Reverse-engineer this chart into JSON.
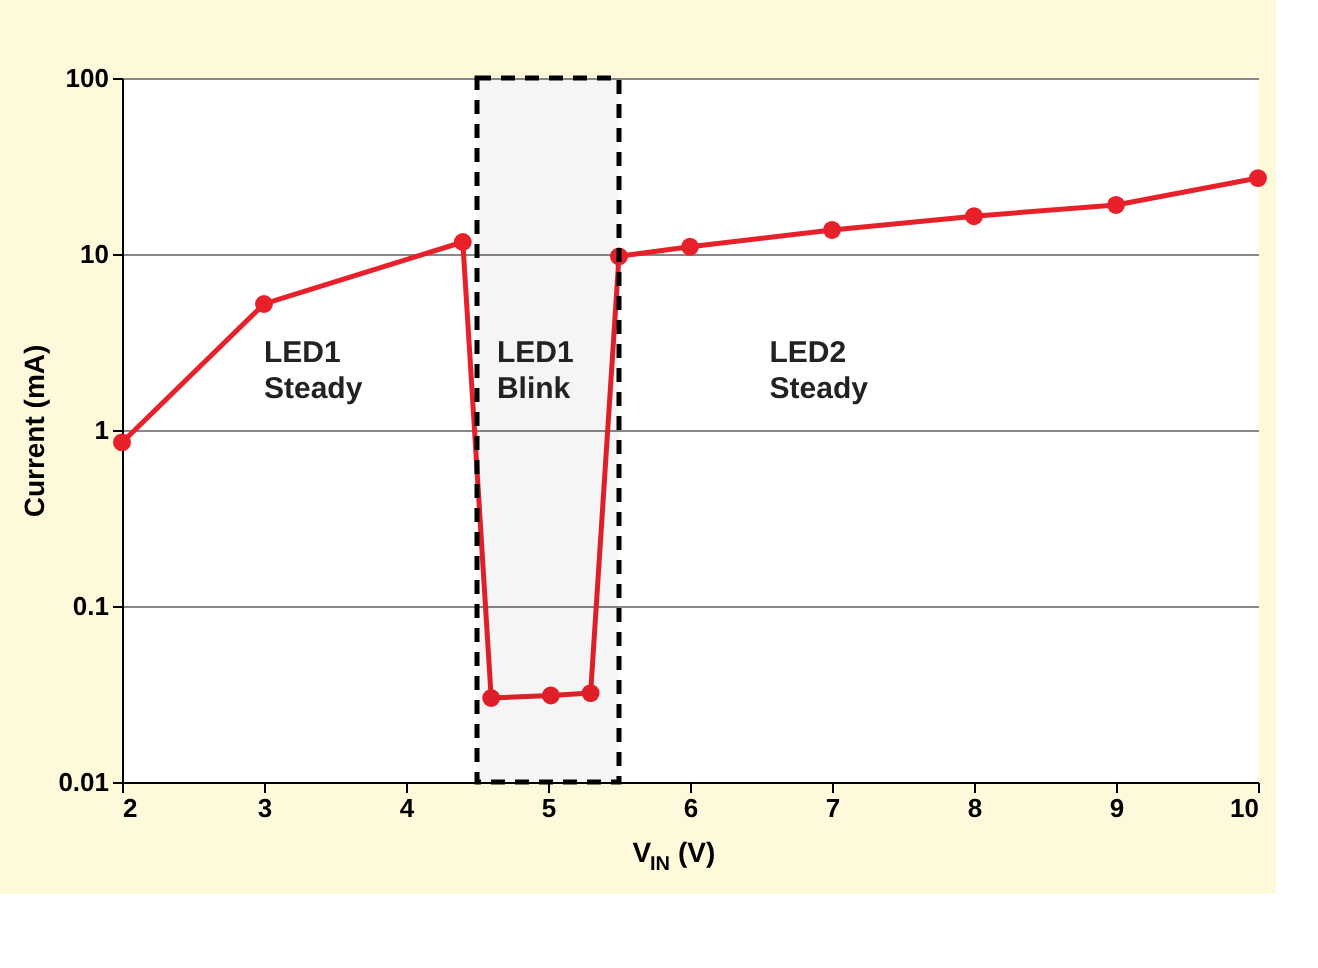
{
  "chart_data": {
    "type": "line",
    "xlabel": "V$_{IN}$ (V)",
    "ylabel": "Current (mA)",
    "x": [
      2,
      3,
      4.4,
      4.6,
      5.02,
      5.3,
      5.5,
      6,
      7,
      8,
      9,
      10
    ],
    "series": [
      {
        "color": "#e8202a",
        "values": [
          0.85,
          5.2,
          11.7,
          0.03,
          0.031,
          0.032,
          9.7,
          11,
          13.7,
          16.4,
          19,
          27
        ]
      }
    ],
    "xlim": [
      2,
      10
    ],
    "xticks": [
      2,
      3,
      4,
      5,
      6,
      7,
      8,
      9,
      10
    ],
    "ylim": [
      0.01,
      100
    ],
    "yticks": [
      0.01,
      0.1,
      1,
      10,
      100
    ],
    "log": "y",
    "grid": "y",
    "marker": "circle",
    "line_style": "solid",
    "bands": [
      {
        "axis": "x",
        "from": 4.5,
        "to": 5.5,
        "label": null,
        "color": "#000000"
      }
    ],
    "annotations": [
      "LED1\nSteady",
      "LED1\nBlink",
      "LED2\nSteady"
    ]
  }
}
